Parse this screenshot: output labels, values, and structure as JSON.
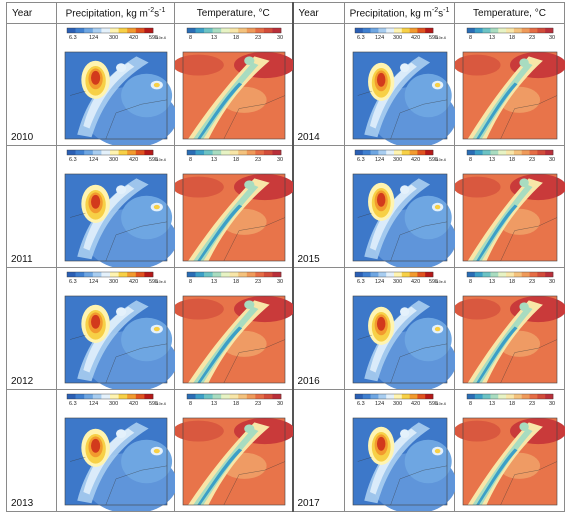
{
  "headers": {
    "year": "Year",
    "precip": "Precipitation, kg m",
    "precip_exp1": "-2",
    "precip_mid": "s",
    "precip_exp2": "-1",
    "temp": "Temperature, °C"
  },
  "precip_scale": {
    "ticks": [
      "6.3",
      "124",
      "300",
      "420",
      "595"
    ],
    "unit": "x10e-6",
    "colors": [
      "#2b5fb4",
      "#3f7fd0",
      "#6ea6e2",
      "#a8cdf0",
      "#e4f1fb",
      "#fff4b0",
      "#f7d046",
      "#f29a2e",
      "#e0531f",
      "#b51818"
    ]
  },
  "temp_scale": {
    "ticks": [
      "8",
      "13",
      "18",
      "23",
      "30"
    ],
    "colors": [
      "#2a6db5",
      "#3c9fc7",
      "#6cc3c4",
      "#a8dcc0",
      "#e7f3c4",
      "#f8e6a8",
      "#f4c27d",
      "#ef9a5a",
      "#e56d45",
      "#d24c3a",
      "#b92f3a"
    ]
  },
  "rows": [
    {
      "left": "2010",
      "right": "2014"
    },
    {
      "left": "2011",
      "right": "2015"
    },
    {
      "left": "2012",
      "right": "2016"
    },
    {
      "left": "2013",
      "right": "2017"
    }
  ]
}
